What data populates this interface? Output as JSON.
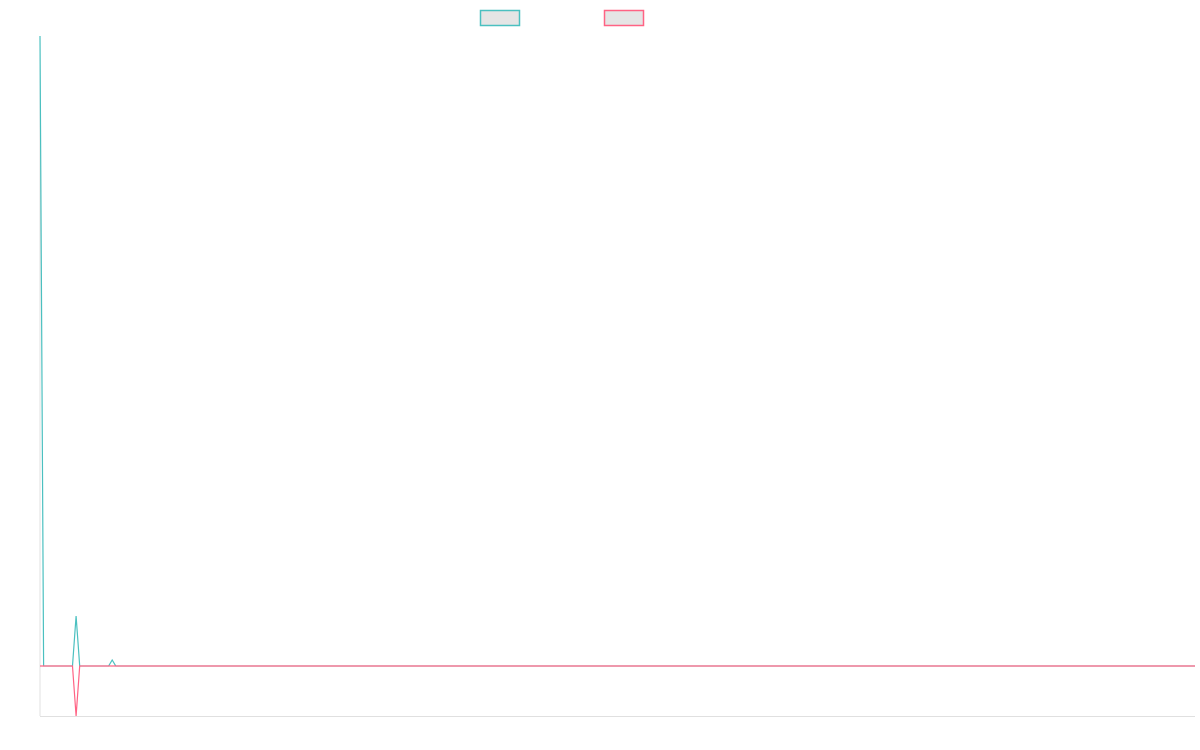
{
  "chart_data": {
    "type": "line",
    "title": "",
    "xlabel": "",
    "ylabel": "",
    "xlim": [
      0,
      320
    ],
    "ylim": [
      -1,
      12.6
    ],
    "grid": false,
    "legend_placement": "top",
    "series": [
      {
        "label": "",
        "color": "#4bc0c0",
        "points": [
          [
            0,
            12.6
          ],
          [
            1,
            0
          ],
          [
            9,
            0
          ],
          [
            10,
            1
          ],
          [
            11,
            0
          ],
          [
            19,
            0
          ],
          [
            20,
            0.12
          ],
          [
            21,
            0
          ],
          [
            320,
            0
          ]
        ]
      },
      {
        "label": "",
        "color": "#ff6384",
        "points": [
          [
            0,
            0
          ],
          [
            9,
            0
          ],
          [
            10,
            -1
          ],
          [
            11,
            0
          ],
          [
            320,
            0
          ]
        ]
      }
    ],
    "legend_fill": "#e5e5e5",
    "axis_color": "#e0e0e0"
  }
}
